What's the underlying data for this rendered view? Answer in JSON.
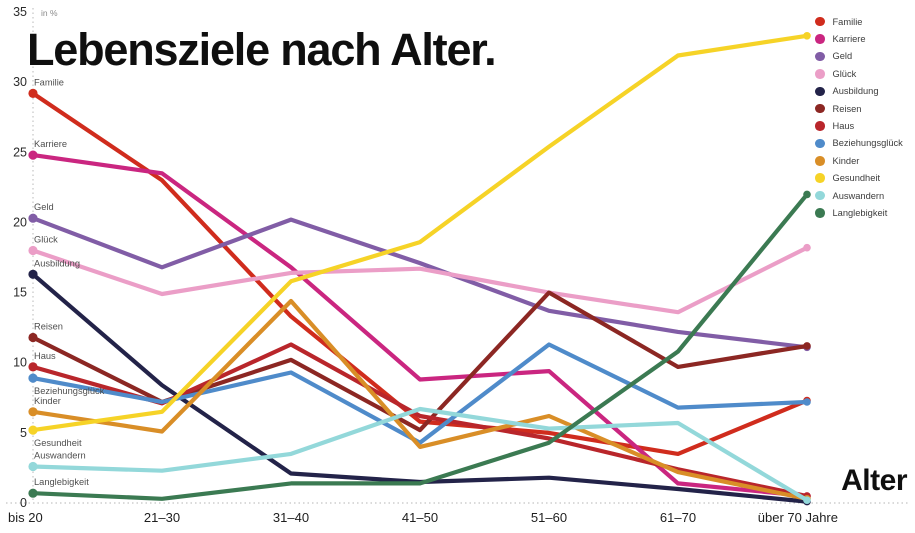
{
  "title": "Lebensziele nach Alter.",
  "unit_label": "in %",
  "x_axis_label": "Alter",
  "chart_data": {
    "type": "line",
    "title": "Lebensziele nach Alter.",
    "ylabel": "in %",
    "xlabel": "Alter",
    "ylim": [
      0,
      35
    ],
    "yticks": [
      0,
      5,
      10,
      15,
      20,
      25,
      30,
      35
    ],
    "grid": "dotted left axis and dotted zero baseline",
    "legend_position": "top-right",
    "categories": [
      "bis 20",
      "21–30",
      "31–40",
      "41–50",
      "51–60",
      "61–70",
      "über 70 Jahre"
    ],
    "series": [
      {
        "name": "Familie",
        "color": "#d02c1d",
        "label_side": "above",
        "values": [
          29.2,
          23.0,
          13.3,
          5.8,
          5.0,
          3.5,
          7.3
        ]
      },
      {
        "name": "Karriere",
        "color": "#ca2680",
        "label_side": "above",
        "values": [
          24.8,
          23.5,
          16.8,
          8.8,
          9.4,
          1.4,
          0.5
        ]
      },
      {
        "name": "Geld",
        "color": "#815da6",
        "label_side": "above",
        "values": [
          20.3,
          16.8,
          20.2,
          17.1,
          13.7,
          12.2,
          11.1
        ]
      },
      {
        "name": "Glück",
        "color": "#eb9ec7",
        "label_side": "above",
        "values": [
          18.0,
          14.9,
          16.4,
          16.7,
          15.0,
          13.6,
          18.2
        ]
      },
      {
        "name": "Ausbildung",
        "color": "#232349",
        "label_side": "above",
        "values": [
          16.3,
          8.4,
          2.1,
          1.5,
          1.8,
          1.0,
          0.1
        ]
      },
      {
        "name": "Reisen",
        "color": "#8c2723",
        "label_side": "above",
        "values": [
          11.8,
          7.2,
          10.2,
          5.2,
          15.0,
          9.7,
          11.2
        ]
      },
      {
        "name": "Haus",
        "color": "#b9262b",
        "label_side": "above",
        "values": [
          9.7,
          7.1,
          11.3,
          6.2,
          4.6,
          2.4,
          0.5
        ]
      },
      {
        "name": "Beziehungsglück",
        "color": "#4f8bca",
        "label_side": "below",
        "values": [
          8.9,
          7.2,
          9.3,
          4.3,
          11.3,
          6.8,
          7.2
        ]
      },
      {
        "name": "Kinder",
        "color": "#d98e27",
        "label_side": "above",
        "values": [
          6.5,
          5.1,
          14.4,
          4.0,
          6.2,
          2.2,
          0.3
        ]
      },
      {
        "name": "Gesundheit",
        "color": "#f6d327",
        "label_side": "below",
        "values": [
          5.2,
          6.5,
          15.8,
          18.6,
          25.4,
          31.9,
          33.3
        ]
      },
      {
        "name": "Auswandern",
        "color": "#93d8da",
        "label_side": "above",
        "values": [
          2.6,
          2.3,
          3.5,
          6.7,
          5.3,
          5.7,
          0.2
        ]
      },
      {
        "name": "Langlebigkeit",
        "color": "#3b7a52",
        "label_side": "above",
        "values": [
          0.7,
          0.3,
          1.4,
          1.4,
          4.3,
          10.8,
          22.0
        ]
      }
    ]
  }
}
